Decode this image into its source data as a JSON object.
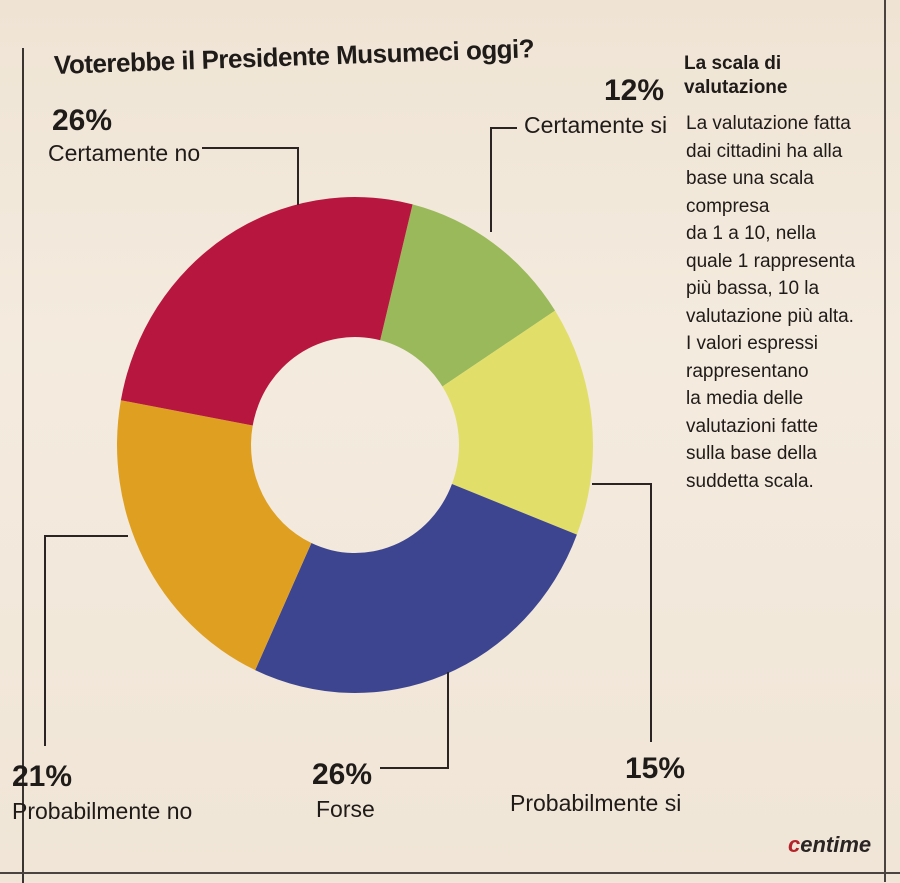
{
  "chart_data": {
    "type": "pie",
    "title": "Voterebbe il Presidente Musumeci oggi?",
    "slices": [
      {
        "label": "Certamente si",
        "value": 12,
        "display": "12%",
        "color": "#9ab95a"
      },
      {
        "label": "Probabilmente si",
        "value": 15,
        "display": "15%",
        "color": "#e2de6a"
      },
      {
        "label": "Forse",
        "value": 26,
        "display": "26%",
        "color": "#3d4591"
      },
      {
        "label": "Probabilmente no",
        "value": 21,
        "display": "21%",
        "color": "#dfa021"
      },
      {
        "label": "Certamente no",
        "value": 26,
        "display": "26%",
        "color": "#b7163f"
      }
    ]
  },
  "sidebar": {
    "heading": "La scala di valutazione",
    "body": "La valutazione fatta\ndai cittadini ha alla\nbase una scala\ncompresa\nda 1 a 10, nella\nquale 1 rappresenta\npiù bassa, 10 la\nvalutazione più alta.\nI valori espressi\nrappresentano\nla media delle\nvalutazioni fatte\nsulla base della\nsuddetta scala."
  },
  "brand": {
    "mark": "c",
    "text": "entime"
  }
}
